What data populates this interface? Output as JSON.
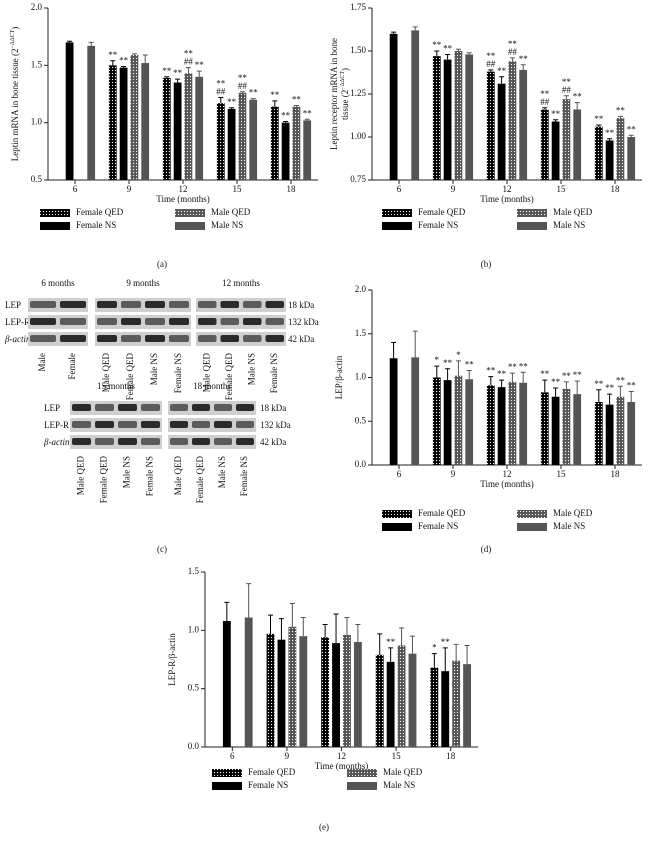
{
  "panel_labels": [
    "(a)",
    "(b)",
    "(c)",
    "(d)",
    "(e)"
  ],
  "blot_panel": {
    "row_labels": [
      "LEP",
      "LEP-R",
      "β-actin"
    ],
    "sizes": [
      "18 kDa",
      "132 kDa",
      "42 kDa"
    ],
    "blots": [
      {
        "title": "6 months",
        "lanes": [
          "Male",
          "Female"
        ]
      },
      {
        "title": "9 months",
        "lanes": [
          "Male QED",
          "Female QED",
          "Male NS",
          "Female NS"
        ]
      },
      {
        "title": "12 months",
        "lanes": [
          "Male QED",
          "Female QED",
          "Male NS",
          "Female NS"
        ]
      },
      {
        "title": "15 months",
        "lanes": [
          "Male QED",
          "Female QED",
          "Male NS",
          "Female NS"
        ]
      },
      {
        "title": "18 months",
        "lanes": [
          "Male QED",
          "Female QED",
          "Male NS",
          "Female NS"
        ]
      }
    ]
  },
  "chart_data": [
    {
      "type": "bar",
      "ylabel": [
        "Leptin mRNA in bone tissue (2"
      ],
      "ylabel_sup": "−ΔΔCT",
      "ylabel_tail": ")",
      "xlabel": "Time (months)",
      "categories": [
        "6",
        "9",
        "12",
        "15",
        "18"
      ],
      "ylim": [
        0.5,
        2.0
      ],
      "yticks": [
        0.5,
        {
          "value": 1.0,
          "label": "1.0"
        },
        1.5,
        {
          "value": 2.0,
          "label": "2.0"
        }
      ],
      "series": [
        {
          "name": "Female QED",
          "color": "#000000",
          "style": "dotted",
          "values": [
            null,
            1.5,
            1.39,
            1.17,
            1.14
          ],
          "errors": [
            null,
            0.04,
            0.01,
            0.05,
            0.05
          ],
          "annotations": [
            null,
            [
              "**"
            ],
            [
              "**"
            ],
            [
              "**",
              "##"
            ],
            [
              "**"
            ]
          ]
        },
        {
          "name": "Female NS",
          "color": "#000000",
          "style": "solid",
          "values": [
            1.7,
            1.48,
            1.35,
            1.12,
            1.0
          ],
          "errors": [
            0.01,
            0.01,
            0.03,
            0.01,
            0.01
          ],
          "annotations": [
            null,
            [
              "**"
            ],
            [
              "**"
            ],
            [
              "**"
            ],
            [
              "**"
            ]
          ]
        },
        {
          "name": "Male QED",
          "color": "#555555",
          "style": "dotted",
          "values": [
            null,
            1.59,
            1.43,
            1.26,
            1.14
          ],
          "errors": [
            null,
            0.01,
            0.05,
            0.01,
            0.01
          ],
          "annotations": [
            null,
            null,
            [
              "**",
              "##"
            ],
            [
              "**",
              "##"
            ],
            [
              "**"
            ]
          ]
        },
        {
          "name": "Male NS",
          "color": "#555555",
          "style": "solid",
          "values": [
            1.67,
            1.52,
            1.4,
            1.2,
            1.02
          ],
          "errors": [
            0.03,
            0.07,
            0.05,
            0.01,
            0.01
          ],
          "annotations": [
            null,
            null,
            [
              "**"
            ],
            [
              "**"
            ],
            [
              "**"
            ]
          ]
        }
      ]
    },
    {
      "type": "bar",
      "ylabel": [
        "Leptin receptor mRNA in bone",
        "tissue (2"
      ],
      "ylabel_sup": "−ΔΔCT",
      "ylabel_tail": ")",
      "xlabel": "Time (months)",
      "categories": [
        "6",
        "9",
        "12",
        "15",
        "18"
      ],
      "ylim": [
        0.75,
        1.75
      ],
      "yticks": [
        0.75,
        {
          "value": 1.0,
          "label": "1.00"
        },
        1.25,
        {
          "value": 1.5,
          "label": "1.50"
        },
        1.75
      ],
      "series": [
        {
          "name": "Female QED",
          "color": "#000000",
          "style": "dotted",
          "values": [
            null,
            1.47,
            1.38,
            1.16,
            1.06
          ],
          "errors": [
            null,
            0.03,
            0.01,
            0.01,
            0.01
          ],
          "annotations": [
            null,
            [
              "**"
            ],
            [
              "**",
              "##"
            ],
            [
              "**",
              "##"
            ],
            [
              "**"
            ]
          ]
        },
        {
          "name": "Female NS",
          "color": "#000000",
          "style": "solid",
          "values": [
            1.6,
            1.45,
            1.31,
            1.09,
            0.98
          ],
          "errors": [
            0.01,
            0.03,
            0.04,
            0.01,
            0.01
          ],
          "annotations": [
            null,
            [
              "**"
            ],
            [
              "**"
            ],
            [
              "**"
            ],
            [
              "**"
            ]
          ]
        },
        {
          "name": "Male QED",
          "color": "#555555",
          "style": "dotted",
          "values": [
            null,
            1.5,
            1.44,
            1.22,
            1.11
          ],
          "errors": [
            null,
            0.01,
            0.02,
            0.02,
            0.01
          ],
          "annotations": [
            null,
            null,
            [
              "**",
              "##"
            ],
            [
              "**",
              "##"
            ],
            [
              "**"
            ]
          ]
        },
        {
          "name": "Male NS",
          "color": "#555555",
          "style": "solid",
          "values": [
            1.62,
            1.48,
            1.39,
            1.16,
            1.0
          ],
          "errors": [
            0.02,
            0.01,
            0.03,
            0.04,
            0.01
          ],
          "annotations": [
            null,
            null,
            [
              "**"
            ],
            [
              "**"
            ],
            [
              "**"
            ]
          ]
        }
      ]
    },
    {
      "type": "bar",
      "ylabel": [
        "LEP/β-actin"
      ],
      "xlabel": "Time (months)",
      "categories": [
        "6",
        "9",
        "12",
        "15",
        "18"
      ],
      "ylim": [
        0,
        2.0
      ],
      "yticks": [
        {
          "value": 0,
          "label": "0.0"
        },
        0.5,
        {
          "value": 1.0,
          "label": "1.0"
        },
        1.5,
        {
          "value": 2.0,
          "label": "2.0"
        }
      ],
      "series": [
        {
          "name": "Female QED",
          "color": "#000000",
          "style": "dotted",
          "values": [
            null,
            1.0,
            0.91,
            0.83,
            0.72
          ],
          "errors": [
            null,
            0.13,
            0.1,
            0.14,
            0.14
          ],
          "annotations": [
            null,
            [
              "*"
            ],
            [
              "**"
            ],
            [
              "**"
            ],
            [
              "**"
            ]
          ]
        },
        {
          "name": "Female NS",
          "color": "#000000",
          "style": "solid",
          "values": [
            1.22,
            0.97,
            0.89,
            0.78,
            0.69
          ],
          "errors": [
            0.18,
            0.13,
            0.08,
            0.1,
            0.12
          ],
          "annotations": [
            null,
            [
              "**"
            ],
            [
              "**"
            ],
            [
              "**"
            ],
            [
              "**"
            ]
          ]
        },
        {
          "name": "Male QED",
          "color": "#555555",
          "style": "dotted",
          "values": [
            null,
            1.02,
            0.95,
            0.87,
            0.78
          ],
          "errors": [
            null,
            0.17,
            0.1,
            0.08,
            0.12
          ],
          "annotations": [
            null,
            [
              "*"
            ],
            [
              "**"
            ],
            [
              "**"
            ],
            [
              "**"
            ]
          ]
        },
        {
          "name": "Male NS",
          "color": "#555555",
          "style": "solid",
          "values": [
            1.23,
            0.98,
            0.94,
            0.81,
            0.72
          ],
          "errors": [
            0.3,
            0.1,
            0.12,
            0.15,
            0.12
          ],
          "annotations": [
            null,
            [
              "**"
            ],
            [
              "**"
            ],
            [
              "**"
            ],
            [
              "**"
            ]
          ]
        }
      ]
    },
    {
      "type": "bar",
      "ylabel": [
        "LEP-R/β-actin"
      ],
      "xlabel": "Time (months)",
      "categories": [
        "6",
        "9",
        "12",
        "15",
        "18"
      ],
      "ylim": [
        0,
        1.5
      ],
      "yticks": [
        {
          "value": 0,
          "label": "0.0"
        },
        0.5,
        {
          "value": 1.0,
          "label": "1.0"
        },
        1.5
      ],
      "series": [
        {
          "name": "Female QED",
          "color": "#000000",
          "style": "dotted",
          "values": [
            null,
            0.97,
            0.94,
            0.79,
            0.68
          ],
          "errors": [
            null,
            0.16,
            0.11,
            0.18,
            0.12
          ],
          "annotations": [
            null,
            null,
            null,
            null,
            [
              "*"
            ]
          ]
        },
        {
          "name": "Female NS",
          "color": "#000000",
          "style": "solid",
          "values": [
            1.08,
            0.92,
            0.89,
            0.73,
            0.65
          ],
          "errors": [
            0.16,
            0.18,
            0.25,
            0.12,
            0.2
          ],
          "annotations": [
            null,
            null,
            null,
            [
              "**"
            ],
            [
              "**"
            ]
          ]
        },
        {
          "name": "Male QED",
          "color": "#555555",
          "style": "dotted",
          "values": [
            null,
            1.03,
            0.96,
            0.87,
            0.74
          ],
          "errors": [
            null,
            0.2,
            0.15,
            0.15,
            0.14
          ],
          "annotations": [
            null,
            null,
            null,
            null,
            null
          ]
        },
        {
          "name": "Male NS",
          "color": "#555555",
          "style": "solid",
          "values": [
            1.11,
            0.95,
            0.9,
            0.8,
            0.71
          ],
          "errors": [
            0.29,
            0.16,
            0.15,
            0.15,
            0.16
          ],
          "annotations": [
            null,
            null,
            null,
            null,
            null
          ]
        }
      ]
    }
  ]
}
